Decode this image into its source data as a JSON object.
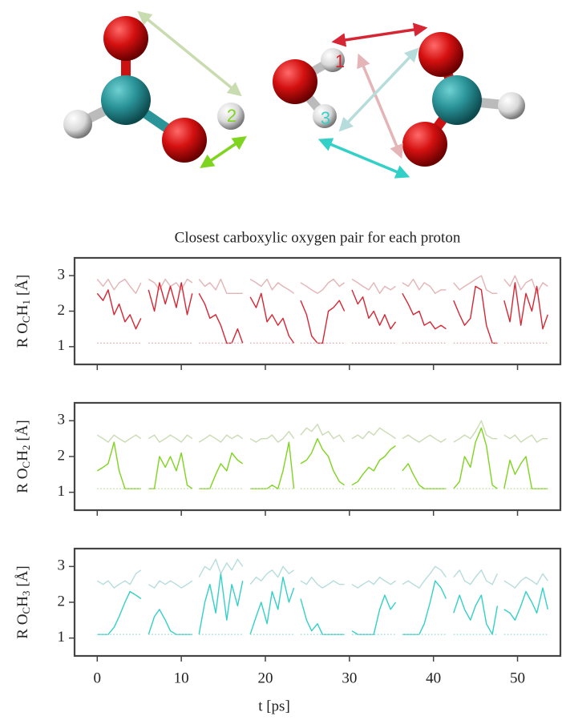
{
  "figure": {
    "labels": [
      "1",
      "2",
      "3"
    ]
  },
  "chart_data": [
    {
      "type": "line",
      "title": "Closest carboxylic oxygen pair for each proton",
      "ylabel": [
        "R O",
        "C",
        "H",
        "1",
        "[Å]"
      ],
      "xlim": [
        -2.7,
        55.1
      ],
      "xticks": [
        0,
        10,
        20,
        30,
        40,
        50
      ],
      "xticklabels": false,
      "ylim": [
        0.5,
        3.5
      ],
      "yticks": [
        1,
        2,
        3
      ],
      "x": [
        0,
        0.7,
        1.3,
        2,
        2.6,
        3.3,
        3.9,
        4.6,
        5.2,
        5.6,
        6.1,
        6.8,
        7.4,
        8.1,
        8.7,
        9.4,
        10,
        10.7,
        11.3,
        11.7,
        12.1,
        12.8,
        13.4,
        14.1,
        14.7,
        15.4,
        16,
        16.7,
        17.3,
        17.8,
        18.2,
        18.9,
        19.5,
        20.2,
        20.8,
        21.5,
        22.1,
        22.8,
        23.4,
        23.8,
        24.2,
        24.9,
        25.5,
        26.2,
        26.8,
        27.5,
        28.1,
        28.8,
        29.4,
        29.9,
        30.3,
        31,
        31.6,
        32.3,
        32.9,
        33.6,
        34.2,
        34.9,
        35.5,
        35.9,
        36.3,
        37,
        37.6,
        38.3,
        38.9,
        39.6,
        40.2,
        40.9,
        41.5,
        42,
        42.4,
        43.1,
        43.7,
        44.4,
        45,
        45.7,
        46.3,
        47,
        47.6,
        48,
        48.4,
        49.1,
        49.7,
        50.4,
        51,
        51.7,
        52.3,
        53,
        53.6
      ],
      "series": [
        {
          "color": "#e4b4b7",
          "values": [
            2.9,
            2.7,
            2.9,
            2.6,
            2.8,
            2.9,
            2.7,
            2.5,
            2.8,
            null,
            2.9,
            2.8,
            2.6,
            2.9,
            2.7,
            2.8,
            2.6,
            2.9,
            2.8,
            null,
            2.9,
            2.7,
            2.8,
            2.6,
            2.9,
            2.5,
            2.5,
            2.5,
            2.5,
            null,
            2.9,
            2.8,
            2.7,
            2.9,
            2.6,
            2.8,
            2.7,
            2.6,
            2.5,
            null,
            2.8,
            2.7,
            2.6,
            2.5,
            2.6,
            2.8,
            2.9,
            2.7,
            2.8,
            null,
            2.9,
            2.8,
            2.7,
            2.6,
            2.8,
            2.5,
            2.7,
            2.6,
            2.7,
            null,
            2.8,
            2.7,
            2.9,
            2.6,
            2.8,
            2.7,
            2.5,
            2.6,
            2.6,
            null,
            2.8,
            2.6,
            2.7,
            2.8,
            2.9,
            3.0,
            2.6,
            2.5,
            2.5,
            null,
            2.9,
            2.7,
            3.0,
            2.6,
            2.8,
            2.9,
            2.5,
            2.8,
            2.7
          ]
        },
        {
          "color": "#d62634",
          "values": [
            2.5,
            2.3,
            2.6,
            1.9,
            2.2,
            1.7,
            1.9,
            1.5,
            1.8,
            null,
            2.6,
            2.0,
            2.8,
            2.2,
            2.7,
            2.1,
            2.8,
            1.9,
            2.5,
            null,
            2.5,
            2.2,
            1.8,
            1.9,
            1.6,
            1.1,
            1.1,
            1.5,
            1.1,
            null,
            2.4,
            2.1,
            2.5,
            1.7,
            1.9,
            1.6,
            1.8,
            1.3,
            1.1,
            null,
            2.3,
            1.9,
            1.3,
            1.1,
            1.1,
            2.0,
            2.1,
            2.3,
            2.0,
            null,
            2.6,
            2.2,
            2.4,
            1.8,
            2.0,
            1.6,
            1.9,
            1.5,
            1.7,
            null,
            2.5,
            2.2,
            1.9,
            2.0,
            1.6,
            1.7,
            1.5,
            1.6,
            1.5,
            null,
            2.3,
            1.9,
            1.6,
            1.8,
            2.7,
            2.6,
            1.6,
            1.1,
            1.1,
            null,
            2.3,
            1.7,
            2.8,
            1.6,
            2.5,
            2.0,
            2.7,
            1.5,
            1.9
          ]
        },
        {
          "color": "#e4a4aa",
          "dash": true,
          "x": [
            0,
            5.2,
            5.6,
            6.1,
            11.3,
            11.7,
            12.1,
            17.3,
            17.8,
            18.2,
            23.4,
            23.8,
            24.2,
            29.4,
            29.9,
            30.3,
            35.5,
            35.9,
            36.3,
            41.5,
            42,
            42.4,
            47.6,
            48,
            48.4,
            53.6
          ],
          "values": [
            1.1,
            1.1,
            null,
            1.1,
            1.1,
            null,
            1.1,
            1.1,
            null,
            1.1,
            1.1,
            null,
            1.1,
            1.1,
            null,
            1.1,
            1.1,
            null,
            1.1,
            1.1,
            null,
            1.1,
            1.1,
            null,
            1.1,
            1.1
          ]
        }
      ]
    },
    {
      "type": "line",
      "ylabel": [
        "R O",
        "C",
        "H",
        "2",
        "[Å]"
      ],
      "xlim": [
        -2.7,
        55.1
      ],
      "xticks": [
        0,
        10,
        20,
        30,
        40,
        50
      ],
      "xticklabels": false,
      "ylim": [
        0.5,
        3.5
      ],
      "yticks": [
        1,
        2,
        3
      ],
      "x": [
        0,
        0.7,
        1.3,
        2,
        2.6,
        3.3,
        3.9,
        4.6,
        5.2,
        5.6,
        6.1,
        6.8,
        7.4,
        8.1,
        8.7,
        9.4,
        10,
        10.7,
        11.3,
        11.7,
        12.1,
        12.8,
        13.4,
        14.1,
        14.7,
        15.4,
        16,
        16.7,
        17.3,
        17.8,
        18.2,
        18.9,
        19.5,
        20.2,
        20.8,
        21.5,
        22.1,
        22.8,
        23.4,
        23.8,
        24.2,
        24.9,
        25.5,
        26.2,
        26.8,
        27.5,
        28.1,
        28.8,
        29.4,
        29.9,
        30.3,
        31,
        31.6,
        32.3,
        32.9,
        33.6,
        34.2,
        34.9,
        35.5,
        35.9,
        36.3,
        37,
        37.6,
        38.3,
        38.9,
        39.6,
        40.2,
        40.9,
        41.5,
        42,
        42.4,
        43.1,
        43.7,
        44.4,
        45,
        45.7,
        46.3,
        47,
        47.6,
        48,
        48.4,
        49.1,
        49.7,
        50.4,
        51,
        51.7,
        52.3,
        53,
        53.6
      ],
      "series": [
        {
          "color": "#c9dbb4",
          "values": [
            2.6,
            2.5,
            2.4,
            2.6,
            2.5,
            2.4,
            2.5,
            2.6,
            2.5,
            null,
            2.5,
            2.6,
            2.4,
            2.5,
            2.6,
            2.5,
            2.4,
            2.6,
            2.5,
            null,
            2.4,
            2.5,
            2.6,
            2.5,
            2.4,
            2.6,
            2.5,
            2.6,
            2.5,
            null,
            2.5,
            2.4,
            2.5,
            2.5,
            2.6,
            2.4,
            2.5,
            2.7,
            2.5,
            null,
            2.6,
            2.8,
            2.7,
            2.9,
            2.6,
            2.7,
            2.5,
            2.6,
            2.4,
            null,
            2.5,
            2.6,
            2.5,
            2.7,
            2.6,
            2.8,
            2.7,
            2.6,
            2.5,
            null,
            2.5,
            2.6,
            2.5,
            2.4,
            2.5,
            2.6,
            2.5,
            2.4,
            2.5,
            null,
            2.4,
            2.5,
            2.6,
            2.5,
            2.7,
            3.0,
            2.6,
            2.5,
            2.5,
            null,
            2.6,
            2.5,
            2.6,
            2.4,
            2.5,
            2.6,
            2.4,
            2.5,
            2.5
          ]
        },
        {
          "color": "#7fd41f",
          "values": [
            1.6,
            1.7,
            1.8,
            2.4,
            1.6,
            1.1,
            1.1,
            1.1,
            1.1,
            null,
            1.1,
            1.1,
            2.0,
            1.7,
            2.0,
            1.6,
            2.1,
            1.2,
            1.1,
            null,
            1.1,
            1.1,
            1.1,
            1.5,
            1.8,
            1.6,
            2.1,
            1.9,
            1.8,
            null,
            1.1,
            1.1,
            1.1,
            1.1,
            1.2,
            1.1,
            1.6,
            2.4,
            1.1,
            null,
            1.8,
            1.9,
            2.1,
            2.5,
            2.2,
            2.0,
            1.6,
            1.3,
            1.2,
            null,
            1.2,
            1.3,
            1.5,
            1.7,
            1.6,
            1.9,
            2.0,
            2.2,
            2.3,
            null,
            1.6,
            1.8,
            1.5,
            1.2,
            1.1,
            1.1,
            1.1,
            1.1,
            1.1,
            null,
            1.1,
            1.3,
            2.0,
            1.7,
            2.4,
            2.8,
            2.3,
            1.2,
            1.1,
            null,
            1.1,
            1.9,
            1.5,
            1.8,
            2.0,
            1.1,
            1.1,
            1.1,
            1.1
          ]
        },
        {
          "color": "#b9dc9a",
          "dash": true,
          "x": [
            0,
            5.2,
            5.6,
            6.1,
            11.3,
            11.7,
            12.1,
            17.3,
            17.8,
            18.2,
            23.4,
            23.8,
            24.2,
            29.4,
            29.9,
            30.3,
            35.5,
            35.9,
            36.3,
            41.5,
            42,
            42.4,
            47.6,
            48,
            48.4,
            53.6
          ],
          "values": [
            1.1,
            1.1,
            null,
            1.1,
            1.1,
            null,
            1.1,
            1.1,
            null,
            1.1,
            1.1,
            null,
            1.1,
            1.1,
            null,
            1.1,
            1.1,
            null,
            1.1,
            1.1,
            null,
            1.1,
            1.1,
            null,
            1.1,
            1.1
          ]
        }
      ]
    },
    {
      "type": "line",
      "xlabel": "t [ps]",
      "ylabel": [
        "R O",
        "C",
        "H",
        "3",
        "[Å]"
      ],
      "xlim": [
        -2.7,
        55.1
      ],
      "xticks": [
        0,
        10,
        20,
        30,
        40,
        50
      ],
      "xticklabels": true,
      "ylim": [
        0.5,
        3.5
      ],
      "yticks": [
        1,
        2,
        3
      ],
      "x": [
        0,
        0.7,
        1.3,
        2,
        2.6,
        3.3,
        3.9,
        4.6,
        5.2,
        5.6,
        6.1,
        6.8,
        7.4,
        8.1,
        8.7,
        9.4,
        10,
        10.7,
        11.3,
        11.7,
        12.1,
        12.8,
        13.4,
        14.1,
        14.7,
        15.4,
        16,
        16.7,
        17.3,
        17.8,
        18.2,
        18.9,
        19.5,
        20.2,
        20.8,
        21.5,
        22.1,
        22.8,
        23.4,
        23.8,
        24.2,
        24.9,
        25.5,
        26.2,
        26.8,
        27.5,
        28.1,
        28.8,
        29.4,
        29.9,
        30.3,
        31,
        31.6,
        32.3,
        32.9,
        33.6,
        34.2,
        34.9,
        35.5,
        35.9,
        36.3,
        37,
        37.6,
        38.3,
        38.9,
        39.6,
        40.2,
        40.9,
        41.5,
        42,
        42.4,
        43.1,
        43.7,
        44.4,
        45,
        45.7,
        46.3,
        47,
        47.6,
        48,
        48.4,
        49.1,
        49.7,
        50.4,
        51,
        51.7,
        52.3,
        53,
        53.6
      ],
      "series": [
        {
          "color": "#b6dcdb",
          "values": [
            2.6,
            2.5,
            2.6,
            2.4,
            2.5,
            2.6,
            2.5,
            2.8,
            2.9,
            null,
            2.5,
            2.4,
            2.6,
            2.5,
            2.6,
            2.5,
            2.4,
            2.5,
            2.6,
            null,
            2.7,
            3.0,
            2.9,
            3.2,
            2.8,
            3.1,
            2.9,
            3.2,
            3.0,
            null,
            2.5,
            2.7,
            2.6,
            2.8,
            2.9,
            2.7,
            3.0,
            2.8,
            2.9,
            null,
            2.6,
            2.5,
            2.7,
            2.5,
            2.4,
            2.5,
            2.6,
            2.5,
            2.5,
            null,
            2.5,
            2.4,
            2.5,
            2.6,
            2.5,
            2.7,
            2.6,
            2.5,
            2.6,
            null,
            2.5,
            2.6,
            2.5,
            2.4,
            2.6,
            2.8,
            3.0,
            2.9,
            2.7,
            null,
            2.7,
            2.9,
            2.6,
            2.5,
            2.7,
            2.9,
            2.6,
            2.5,
            2.8,
            null,
            2.6,
            2.5,
            2.4,
            2.6,
            2.7,
            2.6,
            2.5,
            2.8,
            2.6
          ]
        },
        {
          "color": "#33d0c8",
          "values": [
            1.1,
            1.1,
            1.1,
            1.3,
            1.6,
            2.0,
            2.3,
            2.2,
            2.1,
            null,
            1.1,
            1.6,
            1.8,
            1.5,
            1.2,
            1.1,
            1.1,
            1.1,
            1.1,
            null,
            1.1,
            2.0,
            2.5,
            1.7,
            2.8,
            1.5,
            2.5,
            1.9,
            2.6,
            null,
            1.1,
            1.6,
            2.0,
            1.4,
            2.3,
            1.8,
            2.7,
            2.0,
            2.4,
            null,
            2.1,
            1.5,
            1.2,
            1.4,
            1.1,
            1.1,
            1.1,
            1.1,
            1.1,
            null,
            1.2,
            1.1,
            1.1,
            1.1,
            1.1,
            1.8,
            2.2,
            1.8,
            2.0,
            null,
            1.1,
            1.1,
            1.1,
            1.1,
            1.4,
            2.0,
            2.6,
            2.4,
            2.1,
            null,
            1.7,
            2.2,
            1.8,
            1.5,
            1.9,
            2.2,
            1.4,
            1.1,
            1.9,
            null,
            1.8,
            1.7,
            1.5,
            1.9,
            2.3,
            2.0,
            1.7,
            2.4,
            1.8
          ]
        },
        {
          "color": "#9adcd8",
          "dash": true,
          "x": [
            0,
            5.2,
            5.6,
            6.1,
            11.3,
            11.7,
            12.1,
            17.3,
            17.8,
            18.2,
            23.4,
            23.8,
            24.2,
            29.4,
            29.9,
            30.3,
            35.5,
            35.9,
            36.3,
            41.5,
            42,
            42.4,
            47.6,
            48,
            48.4,
            53.6
          ],
          "values": [
            1.1,
            1.1,
            null,
            1.1,
            1.1,
            null,
            1.1,
            1.1,
            null,
            1.1,
            1.1,
            null,
            1.1,
            1.1,
            null,
            1.1,
            1.1,
            null,
            1.1,
            1.1,
            null,
            1.1,
            1.1,
            null,
            1.1,
            1.1
          ]
        }
      ]
    }
  ]
}
